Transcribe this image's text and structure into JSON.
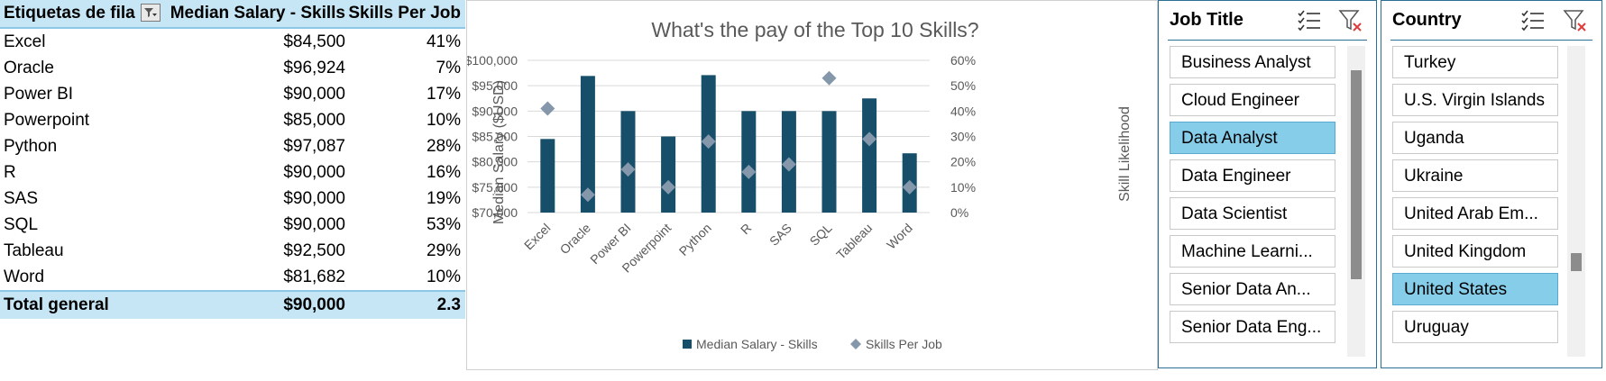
{
  "pivot": {
    "headers": {
      "row_labels": "Etiquetas de fila",
      "median": "Median Salary - Skills",
      "per_job": "Skills Per Job"
    },
    "rows": [
      {
        "skill": "Excel",
        "median": "$84,500",
        "per_job": "41%"
      },
      {
        "skill": "Oracle",
        "median": "$96,924",
        "per_job": "7%"
      },
      {
        "skill": "Power BI",
        "median": "$90,000",
        "per_job": "17%"
      },
      {
        "skill": "Powerpoint",
        "median": "$85,000",
        "per_job": "10%"
      },
      {
        "skill": "Python",
        "median": "$97,087",
        "per_job": "28%"
      },
      {
        "skill": "R",
        "median": "$90,000",
        "per_job": "16%"
      },
      {
        "skill": "SAS",
        "median": "$90,000",
        "per_job": "19%"
      },
      {
        "skill": "SQL",
        "median": "$90,000",
        "per_job": "53%"
      },
      {
        "skill": "Tableau",
        "median": "$92,500",
        "per_job": "29%"
      },
      {
        "skill": "Word",
        "median": "$81,682",
        "per_job": "10%"
      }
    ],
    "total": {
      "label": "Total general",
      "median": "$90,000",
      "per_job": "2.3"
    },
    "filter_icon": "filter-dropdown-icon"
  },
  "chart_data": {
    "type": "bar",
    "title": "What's the pay of the Top 10 Skills?",
    "categories": [
      "Excel",
      "Oracle",
      "Power BI",
      "Powerpoint",
      "Python",
      "R",
      "SAS",
      "SQL",
      "Tableau",
      "Word"
    ],
    "series": [
      {
        "name": "Median Salary - Skills",
        "type": "bar",
        "axis": "left",
        "color": "#174f6b",
        "values": [
          84500,
          96924,
          90000,
          85000,
          97087,
          90000,
          90000,
          90000,
          92500,
          81682
        ]
      },
      {
        "name": "Skills Per Job",
        "type": "scatter",
        "marker": "diamond",
        "axis": "right",
        "color": "#8597aa",
        "values": [
          0.41,
          0.07,
          0.17,
          0.1,
          0.28,
          0.16,
          0.19,
          0.53,
          0.29,
          0.1
        ]
      }
    ],
    "ylabel": "Median Salary ($USD)",
    "y2label": "Skill Likelihood",
    "ylim": [
      70000,
      100000
    ],
    "y2lim": [
      0,
      0.6
    ],
    "yticks": [
      "$70,000",
      "$75,000",
      "$80,000",
      "$85,000",
      "$90,000",
      "$95,000",
      "$100,000"
    ],
    "y2ticks": [
      "0%",
      "10%",
      "20%",
      "30%",
      "40%",
      "50%",
      "60%"
    ],
    "grid": true,
    "legend": "bottom"
  },
  "slicers": {
    "job_title": {
      "title": "Job Title",
      "items": [
        {
          "label": "Business Analyst",
          "selected": false
        },
        {
          "label": "Cloud Engineer",
          "selected": false
        },
        {
          "label": "Data Analyst",
          "selected": true
        },
        {
          "label": "Data Engineer",
          "selected": false
        },
        {
          "label": "Data Scientist",
          "selected": false
        },
        {
          "label": "Machine Learni...",
          "selected": false
        },
        {
          "label": "Senior Data An...",
          "selected": false
        },
        {
          "label": "Senior Data Eng...",
          "selected": false
        }
      ],
      "scroll_position": 0.0
    },
    "country": {
      "title": "Country",
      "items": [
        {
          "label": "Turkey",
          "selected": false
        },
        {
          "label": "U.S. Virgin Islands",
          "selected": false
        },
        {
          "label": "Uganda",
          "selected": false
        },
        {
          "label": "Ukraine",
          "selected": false
        },
        {
          "label": "United Arab Em...",
          "selected": false
        },
        {
          "label": "United Kingdom",
          "selected": false
        },
        {
          "label": "United States",
          "selected": true
        },
        {
          "label": "Uruguay",
          "selected": false
        }
      ],
      "scroll_position": 0.93
    },
    "multi_select_icon": "multi-select-icon",
    "clear_filter_icon": "clear-filter-icon"
  },
  "colors": {
    "accent": "#174f6b",
    "selected": "#86cdea",
    "header_fill": "#c6e6f5",
    "clear_x": "#e03c3c"
  }
}
